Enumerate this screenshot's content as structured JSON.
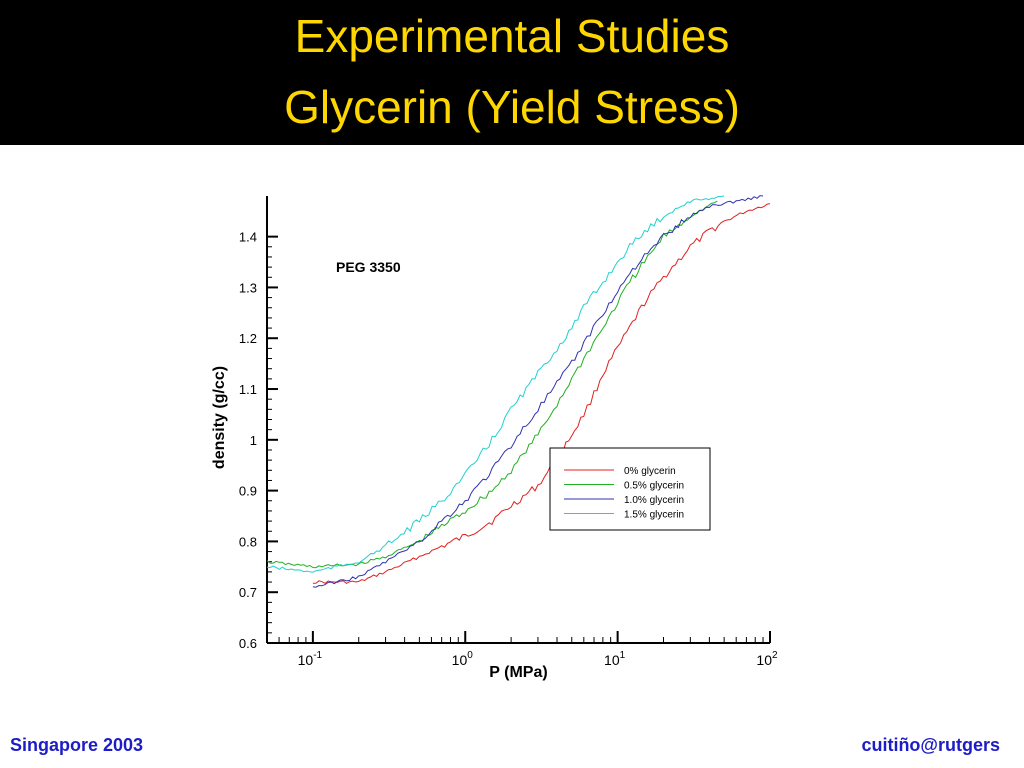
{
  "slide": {
    "title_line1": "Experimental Studies",
    "title_line2": "Glycerin (Yield Stress)",
    "footer_left": "Singapore 2003",
    "footer_right": "cuitiño@rutgers",
    "title_color": "#ffd700",
    "footer_color": "#1c1cc8",
    "header_background": "#000000"
  },
  "chart_data": {
    "type": "line",
    "annotation": "PEG 3350",
    "xlabel": "P (MPa)",
    "ylabel": "density (g/cc)",
    "x_scale": "log",
    "xlim": [
      0.05,
      100
    ],
    "ylim": [
      0.6,
      1.48
    ],
    "x_ticks": [
      {
        "base": "10",
        "exp": "-1",
        "value": 0.1
      },
      {
        "base": "10",
        "exp": "0",
        "value": 1
      },
      {
        "base": "10",
        "exp": "1",
        "value": 10
      },
      {
        "base": "10",
        "exp": "2",
        "value": 100
      }
    ],
    "y_ticks": [
      "0.6",
      "0.7",
      "0.8",
      "0.9",
      "1",
      "1.1",
      "1.2",
      "1.3",
      "1.4"
    ],
    "grid": false,
    "legend_position": "lower-right",
    "series": [
      {
        "name": "0% glycerin",
        "color": "#e02020",
        "x": [
          0.1,
          0.2,
          0.3,
          0.5,
          0.7,
          1.0,
          1.5,
          2.0,
          3.0,
          4.0,
          5.0,
          6.0,
          7.0,
          8.0,
          10.0,
          12.0,
          15.0,
          20.0,
          30.0,
          40.0,
          50.0,
          70.0,
          100.0
        ],
        "y": [
          0.72,
          0.72,
          0.74,
          0.77,
          0.79,
          0.81,
          0.84,
          0.87,
          0.91,
          0.96,
          1.01,
          1.05,
          1.09,
          1.13,
          1.18,
          1.22,
          1.27,
          1.32,
          1.38,
          1.41,
          1.43,
          1.45,
          1.465
        ]
      },
      {
        "name": "0.5% glycerin",
        "color": "#20b020",
        "x": [
          0.05,
          0.1,
          0.2,
          0.3,
          0.5,
          0.7,
          1.0,
          1.5,
          2.0,
          3.0,
          4.0,
          5.0,
          6.0,
          8.0,
          10.0,
          12.0,
          15.0,
          20.0,
          30.0,
          45.0
        ],
        "y": [
          0.76,
          0.75,
          0.755,
          0.77,
          0.8,
          0.83,
          0.86,
          0.9,
          0.94,
          1.01,
          1.07,
          1.12,
          1.16,
          1.22,
          1.27,
          1.31,
          1.35,
          1.4,
          1.44,
          1.47
        ]
      },
      {
        "name": "1.0% glycerin",
        "color": "#3030b0",
        "x": [
          0.1,
          0.2,
          0.3,
          0.5,
          0.7,
          1.0,
          1.5,
          2.0,
          3.0,
          4.0,
          5.0,
          6.0,
          8.0,
          10.0,
          12.0,
          15.0,
          20.0,
          30.0,
          40.0,
          60.0,
          90.0
        ],
        "y": [
          0.71,
          0.73,
          0.76,
          0.8,
          0.84,
          0.88,
          0.94,
          0.99,
          1.06,
          1.11,
          1.15,
          1.19,
          1.25,
          1.29,
          1.33,
          1.36,
          1.4,
          1.44,
          1.46,
          1.47,
          1.48
        ]
      },
      {
        "name": "1.5% glycerin",
        "color": "#20d0d0",
        "x": [
          0.05,
          0.1,
          0.2,
          0.3,
          0.5,
          0.7,
          1.0,
          1.5,
          2.0,
          3.0,
          4.0,
          5.0,
          6.0,
          8.0,
          10.0,
          12.0,
          15.0,
          20.0,
          30.0,
          50.0
        ],
        "y": [
          0.75,
          0.74,
          0.76,
          0.79,
          0.84,
          0.88,
          0.93,
          1.0,
          1.06,
          1.13,
          1.18,
          1.22,
          1.26,
          1.31,
          1.35,
          1.38,
          1.41,
          1.44,
          1.47,
          1.48
        ]
      }
    ]
  }
}
